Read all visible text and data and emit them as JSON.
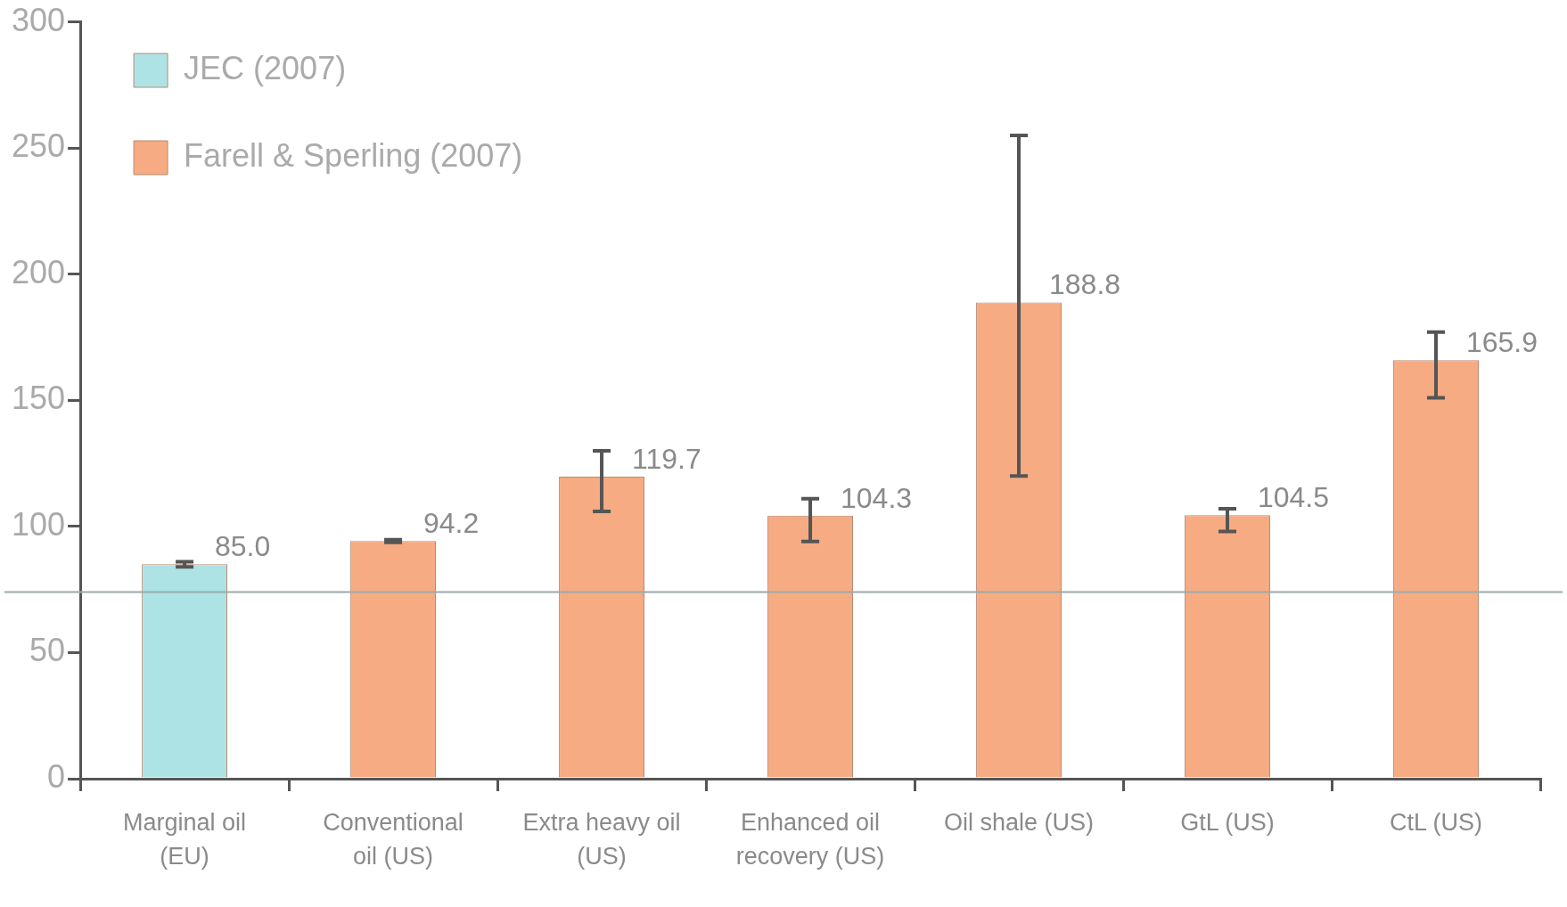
{
  "chart_data": {
    "type": "bar",
    "categories": [
      "Marginal oil (EU)",
      "Conventional oil (US)",
      "Extra heavy oil (US)",
      "Enhanced oil recovery (US)",
      "Oil shale (US)",
      "GtL (US)",
      "CtL (US)"
    ],
    "series": [
      {
        "name": "JEC (2007)",
        "color": "#aee3e6",
        "values": [
          85.0,
          null,
          null,
          null,
          null,
          null,
          null
        ],
        "errors": [
          [
            84,
            86
          ],
          null,
          null,
          null,
          null,
          null,
          null
        ],
        "value_labels": [
          "85.0",
          null,
          null,
          null,
          null,
          null,
          null
        ]
      },
      {
        "name": "Farell & Sperling (2007)",
        "color": "#f6ab82",
        "values": [
          null,
          94.2,
          119.7,
          104.3,
          188.8,
          104.5,
          165.9
        ],
        "errors": [
          null,
          [
            93.7,
            94.7
          ],
          [
            106,
            130
          ],
          [
            94,
            111
          ],
          [
            120,
            255
          ],
          [
            98,
            107
          ],
          [
            151,
            177
          ]
        ],
        "value_labels": [
          null,
          "94.2",
          "119.7",
          "104.3",
          "188.8",
          "104.5",
          "165.9"
        ]
      }
    ],
    "ylim": [
      0,
      300
    ],
    "yticks": [
      0,
      50,
      100,
      150,
      200,
      250,
      300
    ],
    "grid": false,
    "legend": "top left",
    "ref_lines": [
      {
        "axis": "y",
        "value": 74,
        "color": "#9aaaa8"
      }
    ]
  }
}
